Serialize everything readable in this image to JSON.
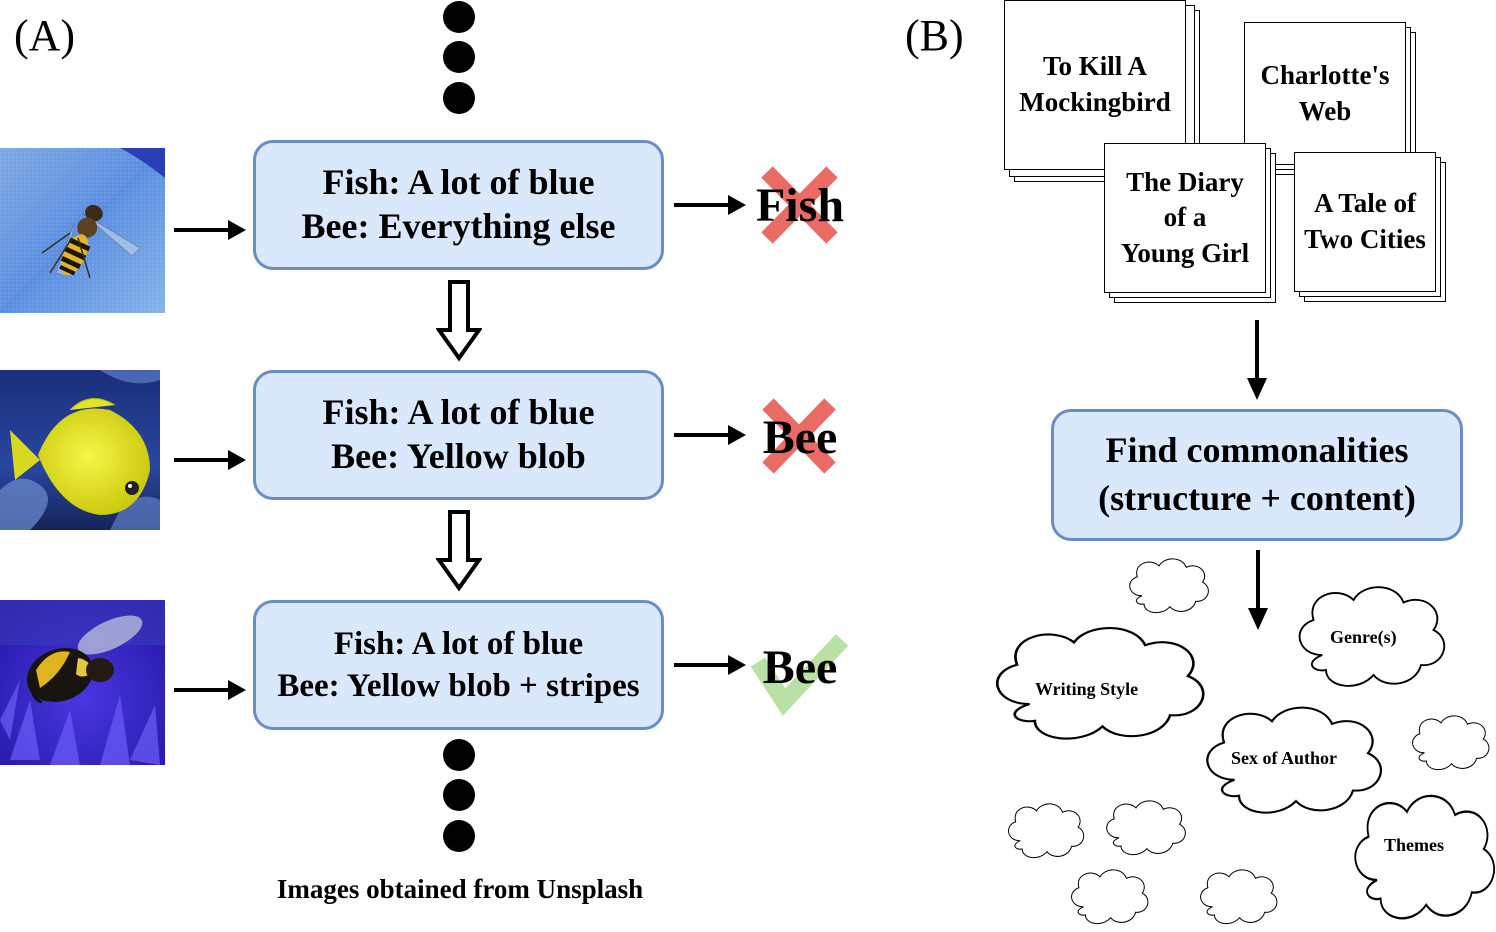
{
  "panel_a": {
    "label": "(A)",
    "rules": [
      {
        "fish": "Fish: A lot of blue",
        "bee": "Bee: Everything else"
      },
      {
        "fish": "Fish: A lot of blue",
        "bee": "Bee: Yellow blob"
      },
      {
        "fish": "Fish: A lot of blue",
        "bee": "Bee: Yellow blob + stripes"
      }
    ],
    "results": [
      {
        "text": "Fish",
        "mark": "cross-icon",
        "color": "#ea6b66"
      },
      {
        "text": "Bee",
        "mark": "cross-icon",
        "color": "#ea6b66"
      },
      {
        "text": "Bee",
        "mark": "check-icon",
        "color": "#b9e0a5"
      }
    ],
    "images": [
      "hoverfly-photo",
      "yellow-tang-fish-photo",
      "bumblebee-photo"
    ],
    "caption": "Images obtained from Unsplash"
  },
  "panel_b": {
    "label": "(B)",
    "books": [
      {
        "line1": "To Kill A",
        "line2": "Mockingbird"
      },
      {
        "line1": "Charlotte's",
        "line2": "Web"
      },
      {
        "line1": "The Diary",
        "line2": "of a",
        "line3": "Young Girl"
      },
      {
        "line1": "A Tale of",
        "line2": "Two Cities"
      }
    ],
    "process": {
      "line1": "Find commonalities",
      "line2": "(structure + content)"
    },
    "clouds": [
      "Genre(s)",
      "Writing Style",
      "Sex of Author",
      "Themes"
    ]
  },
  "colors": {
    "box_fill": "#dae8fc",
    "box_border": "#6a8ec4",
    "wrong": "#ea6b66",
    "right": "#b9e0a5"
  }
}
